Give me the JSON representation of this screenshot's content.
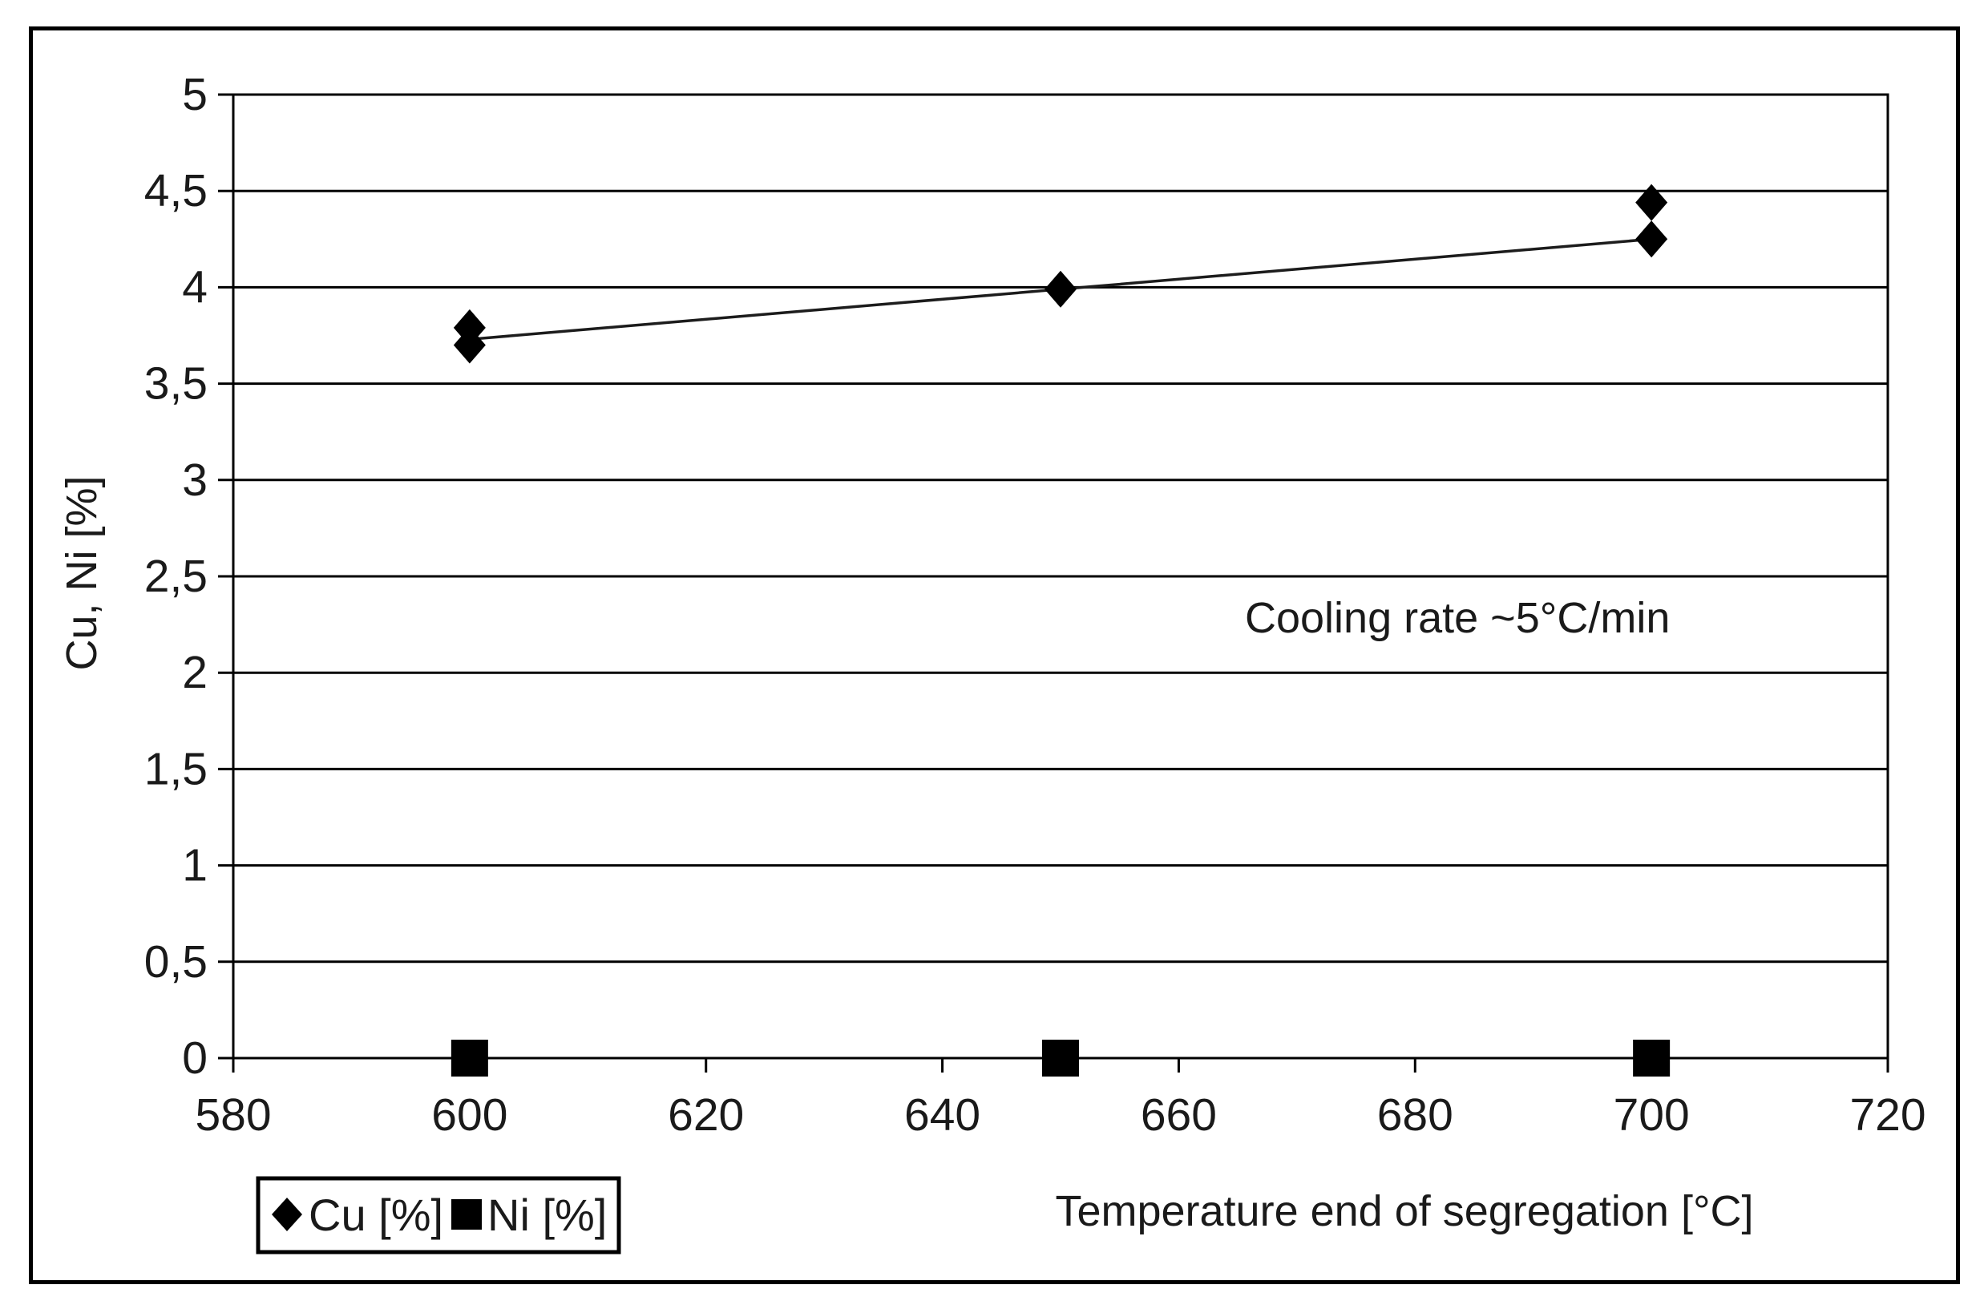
{
  "chart_data": {
    "type": "scatter",
    "xlabel": "Temperature end of segregation [°C]",
    "ylabel": "Cu, Ni [%]",
    "annotation": "Cooling rate ~5°C/min",
    "xlim": [
      580,
      720
    ],
    "ylim": [
      0,
      5
    ],
    "x_ticks": [
      580,
      600,
      620,
      640,
      660,
      680,
      700,
      720
    ],
    "x_tick_labels": [
      "580",
      "600",
      "620",
      "640",
      "660",
      "680",
      "700",
      "720"
    ],
    "y_ticks": [
      0,
      0.5,
      1,
      1.5,
      2,
      2.5,
      3,
      3.5,
      4,
      4.5,
      5
    ],
    "y_tick_labels": [
      "0",
      "0,5",
      "1",
      "1,5",
      "2",
      "2,5",
      "3",
      "3,5",
      "4",
      "4,5",
      "5"
    ],
    "grid": "horizontal",
    "legend_position": "bottom-left",
    "series": [
      {
        "name": "Cu [%]",
        "marker": "diamond",
        "points": [
          [
            600,
            3.7
          ],
          [
            600,
            3.79
          ],
          [
            650,
            3.99
          ],
          [
            700,
            4.25
          ],
          [
            700,
            4.44
          ]
        ],
        "line_points": [
          [
            600,
            3.73
          ],
          [
            650,
            3.99
          ],
          [
            700,
            4.25
          ]
        ]
      },
      {
        "name": "Ni [%]",
        "marker": "square",
        "points": [
          [
            600,
            0
          ],
          [
            650,
            0
          ],
          [
            700,
            0
          ]
        ]
      }
    ],
    "colors": {
      "marker": "#000000",
      "line": "#1c1c1c",
      "grid": "#000000",
      "text": "#1a1a1a"
    }
  }
}
